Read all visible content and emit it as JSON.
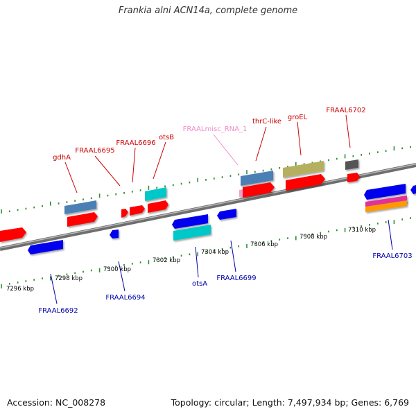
{
  "title": "Frankia alni ACN14a, complete genome",
  "footer": {
    "accession": "Accession: NC_008278",
    "info": "Topology: circular; Length: 7,497,934 bp; Genes: 6,769"
  },
  "colors": {
    "backbone": "#8a8a8a",
    "tick": "#2f8f2f",
    "cds": "#ff0000",
    "cds_reverse": "#0000ee",
    "rna": "#00c8c8",
    "steelblue": "#4b80b4",
    "khaki": "#b5b060",
    "gray": "#555555",
    "magenta": "#e0309a",
    "orange": "#ff9900",
    "misc_rna": "#f0a0d0",
    "label_top": "#cc0000",
    "label_bottom": "#0000aa",
    "label_misc": "#f08cc8"
  },
  "scale_labels": [
    "7296 kbp",
    "7298 kbp",
    "7300 kbp",
    "7302 kbp",
    "7304 kbp",
    "7306 kbp",
    "7308 kbp",
    "7310 kbp"
  ],
  "top_labels": [
    "gdhA",
    "FRAAL6695",
    "FRAAL6696",
    "otsB",
    "FRAALmisc_RNA_1",
    "thrC-like",
    "groEL",
    "FRAAL6702"
  ],
  "bottom_labels": [
    "FRAAL6692",
    "FRAAL6694",
    "otsA",
    "FRAAL6699",
    "FRAAL6703"
  ]
}
